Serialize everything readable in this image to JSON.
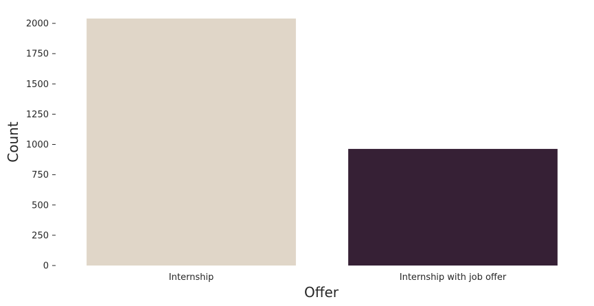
{
  "chart_data": {
    "type": "bar",
    "categories": [
      "Internship",
      "Internship with job offer"
    ],
    "values": [
      2040,
      963
    ],
    "colors": [
      "#e0d6c8",
      "#362035"
    ],
    "xlabel": "Offer",
    "ylabel": "Count",
    "ylim": [
      0,
      2040
    ],
    "yticks": [
      0,
      250,
      500,
      750,
      1000,
      1250,
      1500,
      1750,
      2000
    ],
    "grid": false
  }
}
